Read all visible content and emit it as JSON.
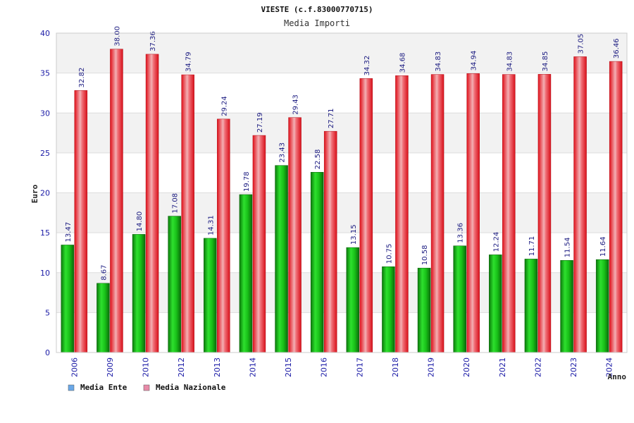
{
  "chart_data": {
    "type": "bar",
    "title": "VIESTE (c.f.83000770715)",
    "subtitle": "Media Importi",
    "xlabel": "Anno",
    "ylabel": "Euro",
    "ylim": [
      0,
      40
    ],
    "yticks": [
      0,
      5,
      10,
      15,
      20,
      25,
      30,
      35,
      40
    ],
    "categories": [
      "2006",
      "2009",
      "2010",
      "2012",
      "2013",
      "2014",
      "2015",
      "2016",
      "2017",
      "2018",
      "2019",
      "2020",
      "2021",
      "2022",
      "2023",
      "2024"
    ],
    "series": [
      {
        "name": "Media Ente",
        "color": "#1fb81f",
        "values": [
          13.47,
          8.67,
          14.8,
          17.08,
          14.31,
          19.78,
          23.43,
          22.58,
          13.15,
          10.75,
          10.58,
          13.36,
          12.24,
          11.71,
          11.54,
          11.64
        ],
        "labels": [
          "13.47",
          "8.67",
          "14.80",
          "17.08",
          "14.31",
          "19.78",
          "23.43",
          "22.58",
          "13.15",
          "10.75",
          "10.58",
          "13.36",
          "12.24",
          "11.71",
          "11.54",
          "11.64"
        ]
      },
      {
        "name": "Media Nazionale",
        "color": "#e8202a",
        "values": [
          32.82,
          38.0,
          37.36,
          34.79,
          29.24,
          27.19,
          29.43,
          27.71,
          34.32,
          34.68,
          34.83,
          34.94,
          34.83,
          34.85,
          37.05,
          36.46
        ],
        "labels": [
          "32.82",
          "38.00",
          "37.36",
          "34.79",
          "29.24",
          "27.19",
          "29.43",
          "27.71",
          "34.32",
          "34.68",
          "34.83",
          "34.94",
          "34.83",
          "34.85",
          "37.05",
          "36.46"
        ]
      }
    ],
    "legend": [
      {
        "label": "Media Ente",
        "swatch": "#6aa8e8"
      },
      {
        "label": "Media Nazionale",
        "swatch": "#e88aa8"
      }
    ],
    "legend_position": "bottom-left",
    "grid": true
  }
}
